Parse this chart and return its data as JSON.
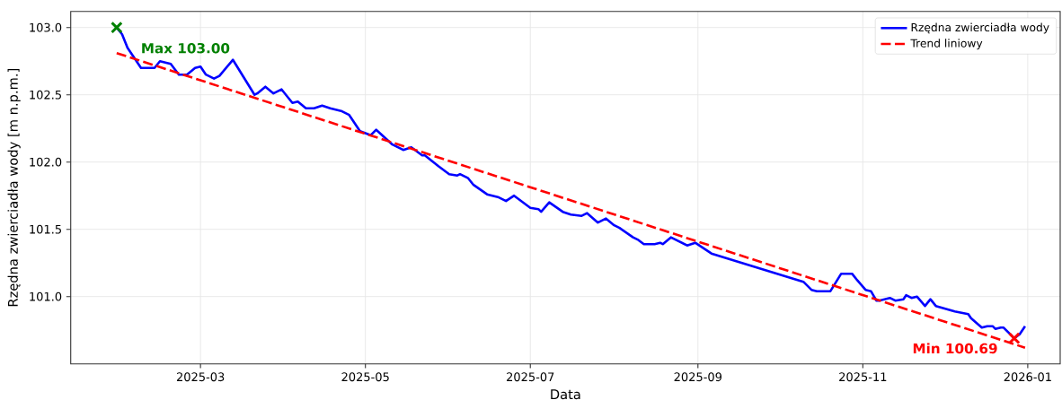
{
  "chart_data": {
    "type": "line",
    "xlabel": "Data",
    "ylabel": "Rzędna zwierciadła wody [m n.p.m.]",
    "series": [
      {
        "name": "Rzędna zwierciadła wody",
        "color": "#0000ff",
        "line_style": "solid",
        "x": [
          "2025-01-29",
          "2025-01-31",
          "2025-02-02",
          "2025-02-04",
          "2025-02-07",
          "2025-02-12",
          "2025-02-14",
          "2025-02-16",
          "2025-02-18",
          "2025-02-21",
          "2025-02-24",
          "2025-02-27",
          "2025-03-01",
          "2025-03-03",
          "2025-03-06",
          "2025-03-08",
          "2025-03-13",
          "2025-03-21",
          "2025-03-22",
          "2025-03-25",
          "2025-03-28",
          "2025-03-31",
          "2025-04-04",
          "2025-04-06",
          "2025-04-09",
          "2025-04-12",
          "2025-04-15",
          "2025-04-18",
          "2025-04-22",
          "2025-04-25",
          "2025-04-29",
          "2025-05-03",
          "2025-05-05",
          "2025-05-11",
          "2025-05-15",
          "2025-05-18",
          "2025-05-22",
          "2025-05-23",
          "2025-05-28",
          "2025-06-01",
          "2025-06-04",
          "2025-06-05",
          "2025-06-08",
          "2025-06-10",
          "2025-06-15",
          "2025-06-19",
          "2025-06-22",
          "2025-06-25",
          "2025-07-01",
          "2025-07-04",
          "2025-07-05",
          "2025-07-08",
          "2025-07-13",
          "2025-07-16",
          "2025-07-20",
          "2025-07-22",
          "2025-07-26",
          "2025-07-29",
          "2025-08-01",
          "2025-08-03",
          "2025-08-08",
          "2025-08-10",
          "2025-08-12",
          "2025-08-16",
          "2025-08-18",
          "2025-08-19",
          "2025-08-22",
          "2025-08-28",
          "2025-08-31",
          "2025-09-03",
          "2025-09-06",
          "2025-10-10",
          "2025-10-13",
          "2025-10-15",
          "2025-10-19",
          "2025-10-20",
          "2025-10-24",
          "2025-10-28",
          "2025-10-30",
          "2025-11-02",
          "2025-11-04",
          "2025-11-06",
          "2025-11-07",
          "2025-11-11",
          "2025-11-13",
          "2025-11-16",
          "2025-11-17",
          "2025-11-19",
          "2025-11-21",
          "2025-11-24",
          "2025-11-26",
          "2025-11-28",
          "2025-12-05",
          "2025-12-10",
          "2025-12-11",
          "2025-12-15",
          "2025-12-17",
          "2025-12-19",
          "2025-12-20",
          "2025-12-22",
          "2025-12-23",
          "2025-12-27",
          "2025-12-29",
          "2025-12-31"
        ],
        "values": [
          103.0,
          102.95,
          102.85,
          102.79,
          102.7,
          102.7,
          102.75,
          102.74,
          102.73,
          102.65,
          102.65,
          102.7,
          102.71,
          102.65,
          102.62,
          102.64,
          102.76,
          102.5,
          102.51,
          102.56,
          102.51,
          102.54,
          102.44,
          102.45,
          102.4,
          102.4,
          102.42,
          102.4,
          102.38,
          102.35,
          102.23,
          102.2,
          102.24,
          102.13,
          102.09,
          102.11,
          102.05,
          102.05,
          101.97,
          101.91,
          101.9,
          101.91,
          101.88,
          101.83,
          101.76,
          101.74,
          101.71,
          101.75,
          101.66,
          101.65,
          101.63,
          101.7,
          101.63,
          101.61,
          101.6,
          101.62,
          101.55,
          101.58,
          101.53,
          101.51,
          101.44,
          101.42,
          101.39,
          101.39,
          101.4,
          101.39,
          101.44,
          101.38,
          101.4,
          101.36,
          101.32,
          101.11,
          101.05,
          101.04,
          101.04,
          101.04,
          101.17,
          101.17,
          101.12,
          101.05,
          101.04,
          100.97,
          100.97,
          100.99,
          100.97,
          100.98,
          101.01,
          100.99,
          101.0,
          100.93,
          100.98,
          100.93,
          100.89,
          100.87,
          100.84,
          100.77,
          100.78,
          100.78,
          100.76,
          100.77,
          100.77,
          100.69,
          100.72,
          100.78
        ]
      },
      {
        "name": "Trend liniowy",
        "color": "#ff0000",
        "line_style": "dashed",
        "x": [
          "2025-01-29",
          "2025-12-31"
        ],
        "values": [
          102.81,
          100.62
        ]
      },
      {
        "type": "scatter",
        "color": "#008000",
        "marker": "cross",
        "x": [
          "2025-01-29"
        ],
        "values": [
          103.0
        ]
      },
      {
        "type": "scatter",
        "color": "#ff0000",
        "marker": "cross",
        "x": [
          "2025-12-27"
        ],
        "values": [
          100.69
        ]
      }
    ],
    "annotations": [
      {
        "text": "Max 103.00",
        "x": "2025-01-29",
        "y": 103.0
      },
      {
        "text": "Min 100.69",
        "x": "2025-12-27",
        "y": 100.69
      }
    ],
    "xlim": [
      "2025-01-12",
      "2026-01-13"
    ],
    "ylim": [
      100.5,
      103.12
    ],
    "xticks": [
      "2025-03",
      "2025-05",
      "2025-07",
      "2025-09",
      "2025-11",
      "2026-01"
    ],
    "yticks": [
      {
        "value": 101.0,
        "label": "101.0"
      },
      101.5,
      {
        "value": 102.0,
        "label": "102.0"
      },
      102.5,
      {
        "value": 103.0,
        "label": "103.0"
      }
    ],
    "grid": true,
    "legend": "top right"
  }
}
